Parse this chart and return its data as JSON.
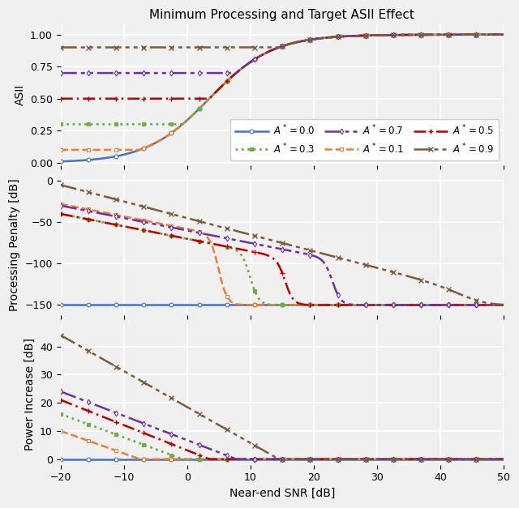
{
  "title": "Minimum Processing and Target ASII Effect",
  "xlabel": "Near-end SNR [dB]",
  "ylabel1": "ASII",
  "ylabel2": "Processing Penalty [dB]",
  "ylabel3": "Power Increase [dB]",
  "snr_min": -20,
  "snr_max": 50,
  "A_values": [
    0.0,
    0.1,
    0.3,
    0.5,
    0.7,
    0.9
  ],
  "colors": [
    "#4472C4",
    "#ED7D31",
    "#70AD47",
    "#C00000",
    "#7030A0",
    "#7B5B3A"
  ],
  "legend_labels": [
    "$A^* = 0.0$",
    "$A^* = 0.1$",
    "$A^* = 0.3$",
    "$A^* = 0.5$",
    "$A^* = 0.7$",
    "$A^* = 0.9$"
  ],
  "floor_dB": -150,
  "background_color": "#f0f0f0"
}
